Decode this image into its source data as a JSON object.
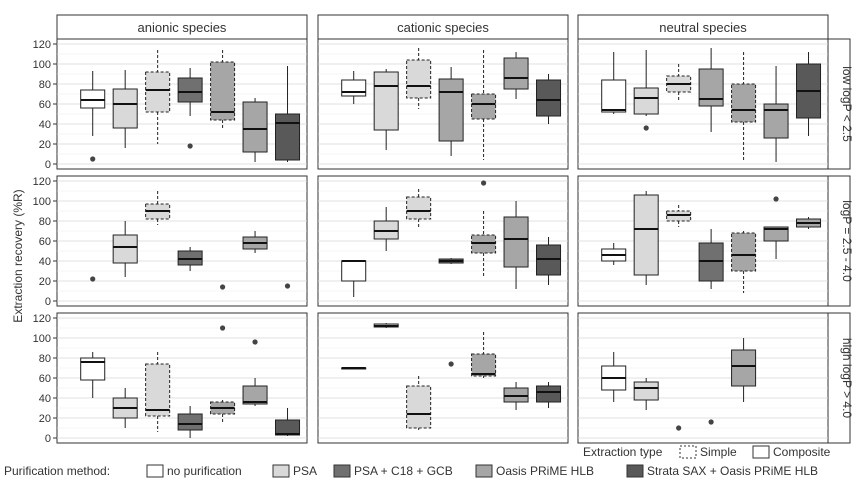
{
  "chart_data": {
    "type": "boxplot",
    "ylabel": "Extraction recovery (%R)",
    "ylim": [
      -5,
      125
    ],
    "yticks": [
      0,
      20,
      40,
      60,
      80,
      100,
      120
    ],
    "grid": true,
    "columns": [
      "anionic species",
      "cationic species",
      "neutral species"
    ],
    "rows": [
      "low logP < 2.5",
      "logP = 2.5 - 4.0",
      "high logP > 4.0"
    ],
    "legend_extraction": {
      "title": "Extraction type",
      "items": [
        {
          "label": "Simple",
          "style": "dashed"
        },
        {
          "label": "Composite",
          "style": "solid"
        }
      ]
    },
    "legend_purification": {
      "title": "Purification method:",
      "items": [
        {
          "label": "no purification",
          "color": "#ffffff"
        },
        {
          "label": "PSA",
          "color": "#d9d9d9"
        },
        {
          "label": "PSA + C18 + GCB",
          "color": "#707070"
        },
        {
          "label": "Oasis PRiME HLB",
          "color": "#a6a6a6"
        },
        {
          "label": "Strata SAX + Oasis PRiME HLB",
          "color": "#595959"
        }
      ]
    },
    "panels": [
      {
        "row": 0,
        "col": 0,
        "boxes": [
          {
            "method": 0,
            "type": "composite",
            "pos": 1,
            "min": 28,
            "q1": 56,
            "median": 64,
            "q3": 74,
            "max": 93,
            "outliers": [
              5
            ]
          },
          {
            "method": 1,
            "type": "composite",
            "pos": 2,
            "min": 16,
            "q1": 36,
            "median": 60,
            "q3": 75,
            "max": 94,
            "outliers": []
          },
          {
            "method": 1,
            "type": "simple",
            "pos": 3,
            "min": 20,
            "q1": 52,
            "median": 74,
            "q3": 92,
            "max": 114,
            "outliers": []
          },
          {
            "method": 2,
            "type": "composite",
            "pos": 4,
            "min": 48,
            "q1": 62,
            "median": 72,
            "q3": 86,
            "max": 96,
            "outliers": [
              18
            ]
          },
          {
            "method": 3,
            "type": "simple",
            "pos": 5,
            "min": 34,
            "q1": 44,
            "median": 52,
            "q3": 102,
            "max": 114,
            "outliers": []
          },
          {
            "method": 3,
            "type": "composite",
            "pos": 6,
            "min": 2,
            "q1": 12,
            "median": 35,
            "q3": 62,
            "max": 66,
            "outliers": []
          },
          {
            "method": 4,
            "type": "composite",
            "pos": 7,
            "min": 2,
            "q1": 4,
            "median": 41,
            "q3": 50,
            "max": 98,
            "outliers": []
          }
        ]
      },
      {
        "row": 0,
        "col": 1,
        "boxes": [
          {
            "method": 0,
            "type": "composite",
            "pos": 1,
            "min": 60,
            "q1": 68,
            "median": 72,
            "q3": 84,
            "max": 93,
            "outliers": []
          },
          {
            "method": 1,
            "type": "composite",
            "pos": 2,
            "min": 14,
            "q1": 34,
            "median": 78,
            "q3": 92,
            "max": 95,
            "outliers": []
          },
          {
            "method": 1,
            "type": "simple",
            "pos": 3,
            "min": 55,
            "q1": 66,
            "median": 78,
            "q3": 104,
            "max": 116,
            "outliers": []
          },
          {
            "method": 3,
            "type": "composite",
            "pos": 4,
            "min": 8,
            "q1": 23,
            "median": 72,
            "q3": 85,
            "max": 97,
            "outliers": []
          },
          {
            "method": 3,
            "type": "simple",
            "pos": 5,
            "min": 4,
            "q1": 45,
            "median": 60,
            "q3": 70,
            "max": 114,
            "outliers": []
          },
          {
            "method": 3,
            "type": "composite",
            "pos": 6,
            "min": 65,
            "q1": 75,
            "median": 86,
            "q3": 106,
            "max": 112,
            "outliers": []
          },
          {
            "method": 4,
            "type": "composite",
            "pos": 7,
            "min": 40,
            "q1": 48,
            "median": 64,
            "q3": 84,
            "max": 90,
            "outliers": []
          }
        ]
      },
      {
        "row": 0,
        "col": 2,
        "boxes": [
          {
            "method": 0,
            "type": "composite",
            "pos": 1,
            "min": 50,
            "q1": 52,
            "median": 54,
            "q3": 84,
            "max": 112,
            "outliers": []
          },
          {
            "method": 1,
            "type": "composite",
            "pos": 2,
            "min": 48,
            "q1": 50,
            "median": 66,
            "q3": 76,
            "max": 114,
            "outliers": [
              36
            ]
          },
          {
            "method": 1,
            "type": "simple",
            "pos": 3,
            "min": 64,
            "q1": 72,
            "median": 80,
            "q3": 88,
            "max": 100,
            "outliers": []
          },
          {
            "method": 3,
            "type": "composite",
            "pos": 4,
            "min": 32,
            "q1": 58,
            "median": 65,
            "q3": 95,
            "max": 116,
            "outliers": []
          },
          {
            "method": 3,
            "type": "simple",
            "pos": 5,
            "min": 4,
            "q1": 42,
            "median": 54,
            "q3": 80,
            "max": 112,
            "outliers": []
          },
          {
            "method": 3,
            "type": "composite",
            "pos": 6,
            "min": 2,
            "q1": 26,
            "median": 54,
            "q3": 60,
            "max": 98,
            "outliers": []
          },
          {
            "method": 4,
            "type": "composite",
            "pos": 7,
            "min": 28,
            "q1": 46,
            "median": 73,
            "q3": 100,
            "max": 112,
            "outliers": []
          }
        ]
      },
      {
        "row": 1,
        "col": 0,
        "boxes": [
          {
            "method": 0,
            "type": "composite",
            "pos": 1,
            "min": null,
            "q1": null,
            "median": null,
            "q3": null,
            "max": null,
            "outliers": [
              22
            ]
          },
          {
            "method": 1,
            "type": "composite",
            "pos": 2,
            "min": 24,
            "q1": 38,
            "median": 54,
            "q3": 66,
            "max": 80,
            "outliers": []
          },
          {
            "method": 1,
            "type": "simple",
            "pos": 3,
            "min": 76,
            "q1": 82,
            "median": 90,
            "q3": 97,
            "max": 110,
            "outliers": []
          },
          {
            "method": 2,
            "type": "composite",
            "pos": 4,
            "min": 30,
            "q1": 36,
            "median": 42,
            "q3": 50,
            "max": 54,
            "outliers": []
          },
          {
            "method": 3,
            "type": "simple",
            "pos": 5,
            "min": null,
            "q1": null,
            "median": null,
            "q3": null,
            "max": null,
            "outliers": [
              14
            ]
          },
          {
            "method": 3,
            "type": "composite",
            "pos": 6,
            "min": 48,
            "q1": 52,
            "median": 58,
            "q3": 64,
            "max": 70,
            "outliers": []
          },
          {
            "method": 4,
            "type": "composite",
            "pos": 7,
            "min": null,
            "q1": null,
            "median": null,
            "q3": null,
            "max": null,
            "outliers": [
              15
            ]
          }
        ]
      },
      {
        "row": 1,
        "col": 1,
        "boxes": [
          {
            "method": 0,
            "type": "composite",
            "pos": 1,
            "min": 4,
            "q1": 20,
            "median": 40,
            "q3": 40,
            "max": 40,
            "outliers": []
          },
          {
            "method": 1,
            "type": "composite",
            "pos": 2,
            "min": 50,
            "q1": 62,
            "median": 70,
            "q3": 80,
            "max": 94,
            "outliers": []
          },
          {
            "method": 1,
            "type": "simple",
            "pos": 3,
            "min": 72,
            "q1": 82,
            "median": 90,
            "q3": 104,
            "max": 112,
            "outliers": []
          },
          {
            "method": 2,
            "type": "composite",
            "pos": 4,
            "min": 37,
            "q1": 38,
            "median": 40,
            "q3": 42,
            "max": 43,
            "outliers": []
          },
          {
            "method": 3,
            "type": "simple",
            "pos": 5,
            "min": 24,
            "q1": 48,
            "median": 58,
            "q3": 66,
            "max": 90,
            "outliers": [
              118
            ]
          },
          {
            "method": 3,
            "type": "composite",
            "pos": 6,
            "min": 12,
            "q1": 34,
            "median": 62,
            "q3": 84,
            "max": 100,
            "outliers": []
          },
          {
            "method": 4,
            "type": "composite",
            "pos": 7,
            "min": 16,
            "q1": 26,
            "median": 42,
            "q3": 56,
            "max": 64,
            "outliers": []
          }
        ]
      },
      {
        "row": 1,
        "col": 2,
        "boxes": [
          {
            "method": 0,
            "type": "composite",
            "pos": 1,
            "min": 36,
            "q1": 40,
            "median": 46,
            "q3": 52,
            "max": 58,
            "outliers": []
          },
          {
            "method": 1,
            "type": "composite",
            "pos": 2,
            "min": 16,
            "q1": 26,
            "median": 72,
            "q3": 106,
            "max": 110,
            "outliers": []
          },
          {
            "method": 1,
            "type": "simple",
            "pos": 3,
            "min": 74,
            "q1": 80,
            "median": 86,
            "q3": 90,
            "max": 96,
            "outliers": []
          },
          {
            "method": 2,
            "type": "composite",
            "pos": 4,
            "min": 12,
            "q1": 20,
            "median": 40,
            "q3": 58,
            "max": 72,
            "outliers": []
          },
          {
            "method": 3,
            "type": "simple",
            "pos": 5,
            "min": 8,
            "q1": 30,
            "median": 46,
            "q3": 68,
            "max": 70,
            "outliers": []
          },
          {
            "method": 3,
            "type": "composite",
            "pos": 6,
            "min": 42,
            "q1": 60,
            "median": 72,
            "q3": 74,
            "max": 74,
            "outliers": [
              102
            ]
          },
          {
            "method": 3,
            "type": "composite",
            "pos": 7,
            "min": 72,
            "q1": 74,
            "median": 78,
            "q3": 82,
            "max": 84,
            "outliers": []
          }
        ]
      },
      {
        "row": 2,
        "col": 0,
        "boxes": [
          {
            "method": 0,
            "type": "composite",
            "pos": 1,
            "min": 40,
            "q1": 58,
            "median": 76,
            "q3": 80,
            "max": 86,
            "outliers": []
          },
          {
            "method": 1,
            "type": "composite",
            "pos": 2,
            "min": 10,
            "q1": 20,
            "median": 30,
            "q3": 40,
            "max": 50,
            "outliers": []
          },
          {
            "method": 1,
            "type": "simple",
            "pos": 3,
            "min": 6,
            "q1": 22,
            "median": 28,
            "q3": 74,
            "max": 86,
            "outliers": []
          },
          {
            "method": 2,
            "type": "composite",
            "pos": 4,
            "min": 0,
            "q1": 8,
            "median": 14,
            "q3": 24,
            "max": 32,
            "outliers": []
          },
          {
            "method": 3,
            "type": "simple",
            "pos": 5,
            "min": 14,
            "q1": 24,
            "median": 30,
            "q3": 36,
            "max": 38,
            "outliers": [
              110
            ]
          },
          {
            "method": 3,
            "type": "composite",
            "pos": 6,
            "min": 32,
            "q1": 34,
            "median": 36,
            "q3": 52,
            "max": 60,
            "outliers": [
              96
            ]
          },
          {
            "method": 4,
            "type": "composite",
            "pos": 7,
            "min": 2,
            "q1": 3,
            "median": 4,
            "q3": 18,
            "max": 30,
            "outliers": []
          }
        ]
      },
      {
        "row": 2,
        "col": 1,
        "boxes": [
          {
            "method": 0,
            "type": "composite",
            "pos": 1,
            "min": 70,
            "q1": 70,
            "median": 70,
            "q3": 70,
            "max": 70,
            "outliers": []
          },
          {
            "method": 1,
            "type": "composite",
            "pos": 2,
            "min": 110,
            "q1": 111,
            "median": 112,
            "q3": 114,
            "max": 115,
            "outliers": []
          },
          {
            "method": 1,
            "type": "simple",
            "pos": 3,
            "min": 8,
            "q1": 10,
            "median": 24,
            "q3": 52,
            "max": 62,
            "outliers": []
          },
          {
            "method": 2,
            "type": "composite",
            "pos": 4,
            "min": null,
            "q1": null,
            "median": null,
            "q3": null,
            "max": null,
            "outliers": [
              74
            ]
          },
          {
            "method": 3,
            "type": "simple",
            "pos": 5,
            "min": 60,
            "q1": 62,
            "median": 64,
            "q3": 84,
            "max": 106,
            "outliers": []
          },
          {
            "method": 3,
            "type": "composite",
            "pos": 6,
            "min": 28,
            "q1": 36,
            "median": 42,
            "q3": 50,
            "max": 56,
            "outliers": []
          },
          {
            "method": 4,
            "type": "composite",
            "pos": 7,
            "min": 30,
            "q1": 36,
            "median": 46,
            "q3": 52,
            "max": 56,
            "outliers": []
          }
        ]
      },
      {
        "row": 2,
        "col": 2,
        "boxes": [
          {
            "method": 0,
            "type": "composite",
            "pos": 1,
            "min": 36,
            "q1": 48,
            "median": 60,
            "q3": 72,
            "max": 86,
            "outliers": []
          },
          {
            "method": 1,
            "type": "composite",
            "pos": 2,
            "min": 28,
            "q1": 38,
            "median": 50,
            "q3": 56,
            "max": 60,
            "outliers": []
          },
          {
            "method": 2,
            "type": "composite",
            "pos": 3,
            "min": null,
            "q1": null,
            "median": null,
            "q3": null,
            "max": null,
            "outliers": [
              10
            ]
          },
          {
            "method": 3,
            "type": "simple",
            "pos": 4,
            "min": null,
            "q1": null,
            "median": null,
            "q3": null,
            "max": null,
            "outliers": [
              16
            ]
          },
          {
            "method": 3,
            "type": "composite",
            "pos": 5,
            "min": 36,
            "q1": 52,
            "median": 72,
            "q3": 88,
            "max": 100,
            "outliers": []
          }
        ]
      }
    ]
  }
}
